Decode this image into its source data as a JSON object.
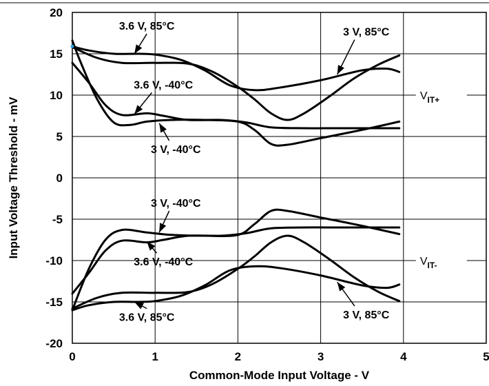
{
  "chart_data": {
    "type": "line",
    "xlabel": "Common-Mode Input Voltage - V",
    "ylabel": "Input Voltage Threshold - mV",
    "xlim": [
      0,
      5
    ],
    "ylim": [
      -20,
      20
    ],
    "xticks": [
      "0",
      "1",
      "2",
      "3",
      "4",
      "5"
    ],
    "yticks": [
      "20",
      "15",
      "10",
      "5",
      "0",
      "-5",
      "-10",
      "-15",
      "-20"
    ],
    "grid": true,
    "series": [
      {
        "name": "3.6 V, 85°C",
        "group": "VIT+",
        "x": [
          0.0,
          0.2,
          0.5,
          0.8,
          1.0,
          1.3,
          1.6,
          1.9,
          2.2,
          2.5,
          3.0,
          3.5,
          3.8,
          3.95
        ],
        "y": [
          15.9,
          15.4,
          15.0,
          15.0,
          14.9,
          14.3,
          13.0,
          11.2,
          10.6,
          10.9,
          11.8,
          13.0,
          13.2,
          12.8
        ]
      },
      {
        "name": "3 V, 85°C",
        "group": "VIT+",
        "x": [
          0.0,
          0.3,
          0.6,
          1.0,
          1.4,
          1.7,
          2.0,
          2.2,
          2.4,
          2.6,
          2.8,
          3.1,
          3.4,
          3.7,
          3.95
        ],
        "y": [
          15.8,
          14.5,
          13.9,
          13.9,
          13.8,
          12.8,
          11.0,
          9.5,
          7.8,
          7.0,
          7.8,
          9.8,
          12.0,
          13.7,
          14.8
        ]
      },
      {
        "name": "3.6 V, -40°C",
        "group": "VIT+",
        "x": [
          0.0,
          0.2,
          0.4,
          0.6,
          0.9,
          1.1,
          1.4,
          1.8,
          2.1,
          2.4,
          2.8,
          3.2,
          3.6,
          3.95
        ],
        "y": [
          13.9,
          11.5,
          8.8,
          7.6,
          7.8,
          7.5,
          7.0,
          7.0,
          6.7,
          6.1,
          6.0,
          6.0,
          6.0,
          6.0
        ]
      },
      {
        "name": "3 V, -40°C",
        "group": "VIT+",
        "x": [
          0.0,
          0.1,
          0.3,
          0.5,
          0.7,
          0.9,
          1.2,
          1.6,
          2.0,
          2.2,
          2.4,
          2.6,
          3.0,
          3.5,
          3.95
        ],
        "y": [
          16.6,
          14.0,
          9.5,
          6.7,
          6.4,
          6.8,
          7.0,
          7.0,
          6.8,
          5.8,
          4.1,
          4.0,
          4.8,
          5.8,
          6.8
        ]
      },
      {
        "name": "3 V, -40°C",
        "group": "VIT-",
        "x": [
          0.0,
          0.2,
          0.4,
          0.6,
          0.9,
          1.2,
          1.6,
          2.0,
          2.2,
          2.4,
          2.6,
          3.0,
          3.5,
          3.95
        ],
        "y": [
          -16.0,
          -11.0,
          -7.5,
          -6.3,
          -6.6,
          -6.9,
          -7.0,
          -6.9,
          -5.6,
          -4.0,
          -4.0,
          -4.8,
          -5.8,
          -6.8
        ]
      },
      {
        "name": "3.6 V, -40°C",
        "group": "VIT-",
        "x": [
          0.0,
          0.2,
          0.4,
          0.6,
          0.9,
          1.1,
          1.4,
          1.8,
          2.1,
          2.4,
          2.8,
          3.2,
          3.6,
          3.95
        ],
        "y": [
          -14.0,
          -11.5,
          -8.8,
          -7.6,
          -7.8,
          -7.5,
          -7.0,
          -7.0,
          -6.7,
          -6.1,
          -6.0,
          -6.0,
          -6.0,
          -6.0
        ]
      },
      {
        "name": "3.6 V, 85°C",
        "group": "VIT-",
        "x": [
          0.0,
          0.2,
          0.5,
          0.8,
          1.0,
          1.3,
          1.6,
          1.9,
          2.2,
          2.5,
          3.0,
          3.5,
          3.8,
          3.95
        ],
        "y": [
          -16.0,
          -15.4,
          -15.0,
          -15.0,
          -14.9,
          -14.3,
          -13.0,
          -11.2,
          -10.7,
          -10.9,
          -11.8,
          -13.0,
          -13.3,
          -12.9
        ]
      },
      {
        "name": "3 V, 85°C",
        "group": "VIT-",
        "x": [
          0.0,
          0.3,
          0.6,
          1.0,
          1.4,
          1.7,
          2.0,
          2.2,
          2.4,
          2.6,
          2.8,
          3.1,
          3.4,
          3.7,
          3.95
        ],
        "y": [
          -15.8,
          -14.5,
          -13.9,
          -13.9,
          -13.8,
          -12.8,
          -11.0,
          -9.5,
          -7.8,
          -7.0,
          -7.8,
          -9.8,
          -12.0,
          -13.8,
          -14.9
        ]
      }
    ],
    "annotations": [
      {
        "text": "3.6 V, 85°C",
        "x": 0.9,
        "y": 17.9,
        "ax": 0.75,
        "ay": 15.0
      },
      {
        "text": "3 V, 85°C",
        "x": 3.55,
        "y": 17.2,
        "ax": 3.2,
        "ay": 12.5
      },
      {
        "text": "3.6 V, -40°C",
        "x": 1.1,
        "y": 10.8,
        "ax": 0.75,
        "ay": 7.7
      },
      {
        "text": "3 V, -40°C",
        "x": 1.25,
        "y": 3.0,
        "ax": 1.05,
        "ay": 6.6
      },
      {
        "text": "3 V, -40°C",
        "x": 1.25,
        "y": -3.5,
        "ax": 1.05,
        "ay": -6.6
      },
      {
        "text": "3.6 V, -40°C",
        "x": 1.1,
        "y": -10.6,
        "ax": 0.9,
        "ay": -7.7
      },
      {
        "text": "3.6 V, 85°C",
        "x": 0.9,
        "y": -17.3,
        "ax": 0.75,
        "ay": -15.0
      },
      {
        "text": "3 V, 85°C",
        "x": 3.55,
        "y": -17.0,
        "ax": 3.2,
        "ay": -12.6
      }
    ],
    "side_labels": [
      {
        "main": "V",
        "sub": "IT+",
        "y": 10
      },
      {
        "main": "V",
        "sub": "IT-",
        "y": -10
      }
    ]
  }
}
